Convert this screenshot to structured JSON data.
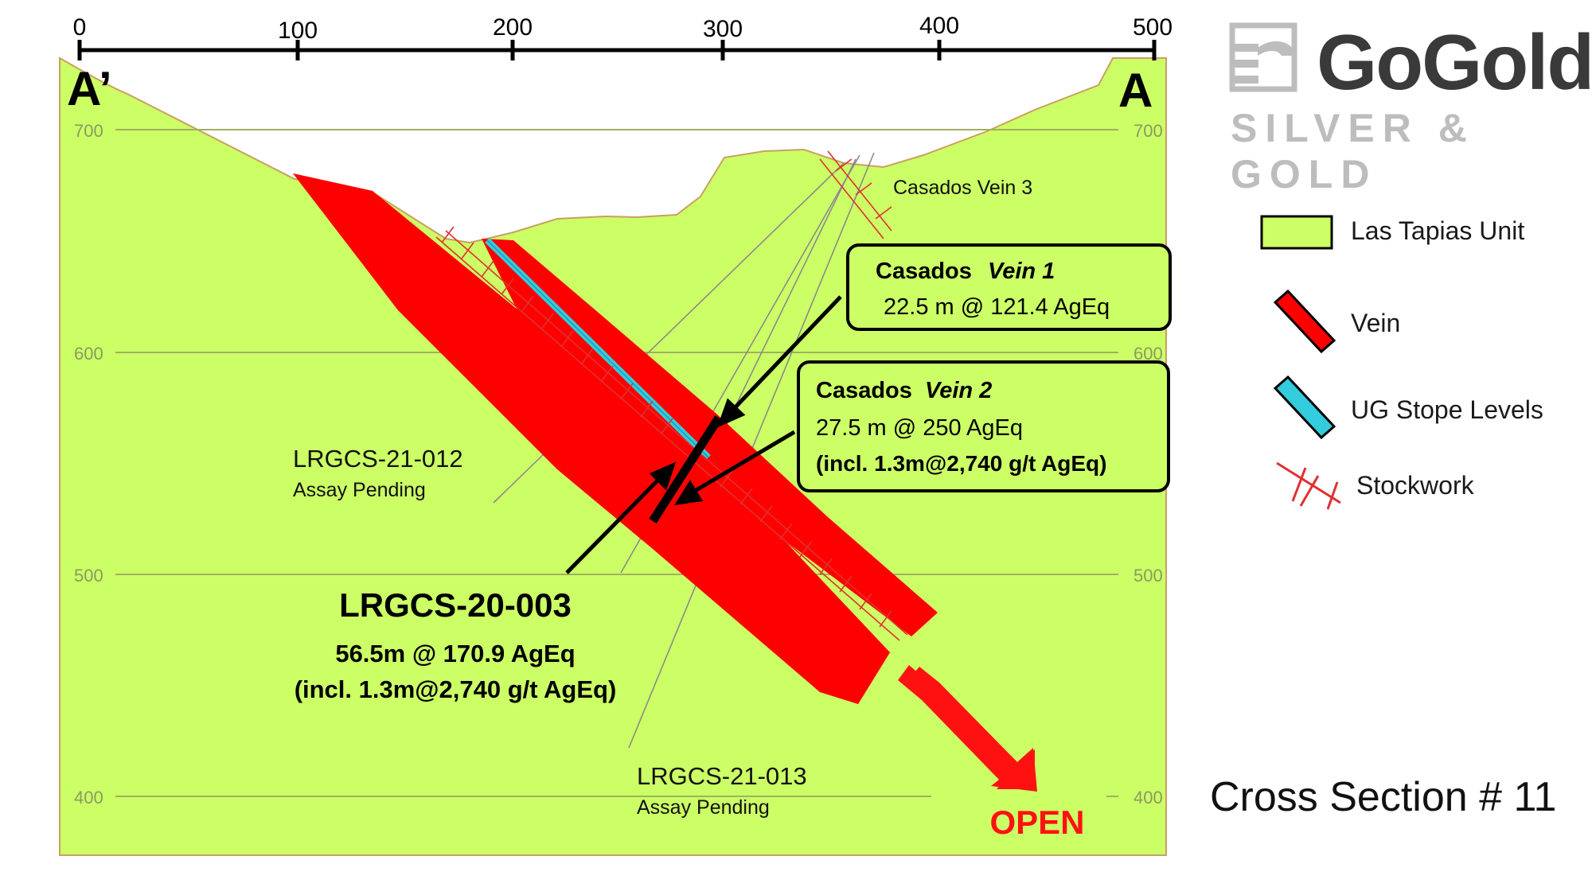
{
  "scale": {
    "ticks": [
      "0",
      "100",
      "200",
      "300",
      "400",
      "500"
    ]
  },
  "section_labels": {
    "left": "A’",
    "right": "A"
  },
  "elevations": {
    "left": [
      "700",
      "600",
      "500",
      "400"
    ],
    "right": [
      "700",
      "600",
      "500",
      "400"
    ]
  },
  "annotations": {
    "vein3": "Casados Vein 3",
    "vein1_title_a": "Casados",
    "vein1_title_b": "Vein 1",
    "vein1_value": "22.5 m @ 121.4 AgEq",
    "vein2_title_a": "Casados",
    "vein2_title_b": "Vein 2",
    "vein2_value": "27.5 m @ 250 AgEq",
    "vein2_incl": "(incl. 1.3m@2,740 g/t AgEq)",
    "hole012_name": "LRGCS-21-012",
    "hole012_status": "Assay Pending",
    "hole013_name": "LRGCS-21-013",
    "hole013_status": "Assay Pending",
    "main_hole": "LRGCS-20-003",
    "main_value": "56.5m @ 170.9 AgEq",
    "main_incl": "(incl. 1.3m@2,740 g/t AgEq)",
    "open": "OPEN"
  },
  "logo": {
    "name": "GoGold",
    "tagline": "SILVER & GOLD"
  },
  "legend": [
    {
      "label": "Las Tapias Unit",
      "icon": "green-rectangle"
    },
    {
      "label": "Vein",
      "icon": "red-bar"
    },
    {
      "label": "UG Stope Levels",
      "icon": "cyan-bar"
    },
    {
      "label": "Stockwork",
      "icon": "red-hatch"
    }
  ],
  "caption": "Cross Section # 11",
  "colors": {
    "unit": "#ccff66",
    "vein": "#ff0000",
    "stope": "#33ccdd",
    "stockwork": "#e03030",
    "open": "#ff1111"
  }
}
